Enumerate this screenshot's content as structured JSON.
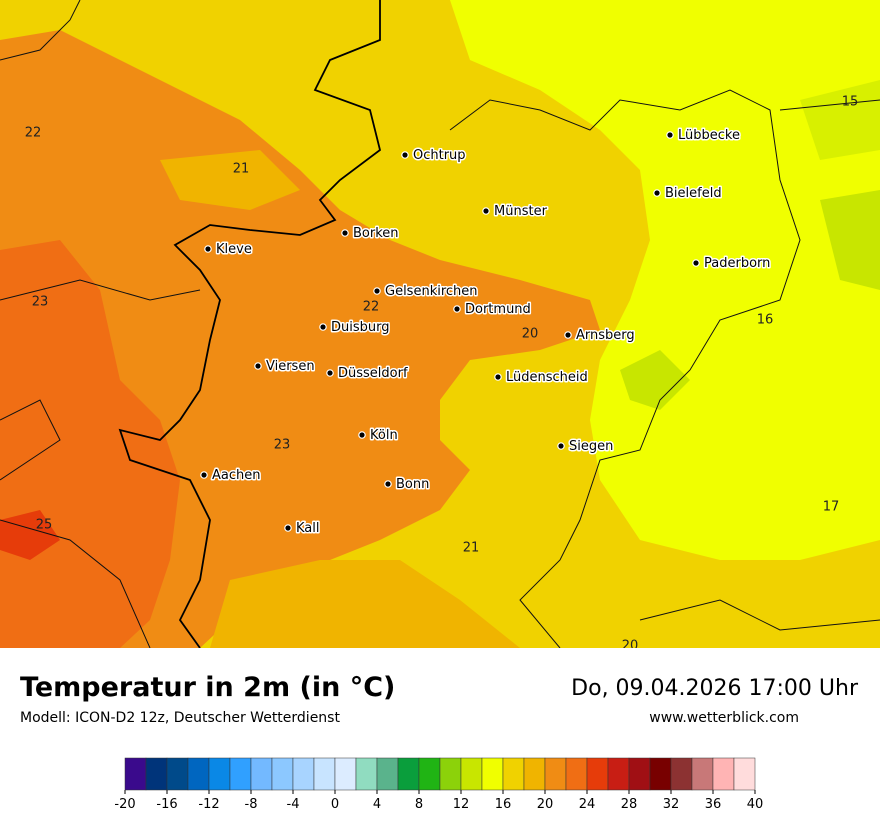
{
  "map": {
    "cities": [
      "Lübbecke",
      "Ochtrup",
      "Bielefeld",
      "Münster",
      "Borken",
      "Kleve",
      "Paderborn",
      "Gelsenkirchen",
      "Dortmund",
      "Duisburg",
      "Arnsberg",
      "Viersen",
      "Düsseldorf",
      "Lüdenscheid",
      "Köln",
      "Siegen",
      "Aachen",
      "Bonn",
      "Kall"
    ],
    "contour_labels": [
      22,
      21,
      23,
      22,
      20,
      23,
      25,
      21,
      20,
      15,
      16,
      17
    ]
  },
  "footer": {
    "title": "Temperatur in 2m (in °C)",
    "model": "Modell: ICON-D2 12z, Deutscher Wetterdienst",
    "datetime": "Do, 09.04.2026 17:00 Uhr",
    "website": "www.wetterblick.com"
  },
  "legend": {
    "ticks": [
      -20,
      -16,
      -12,
      -8,
      -4,
      0,
      4,
      8,
      12,
      16,
      20,
      24,
      28,
      32,
      36,
      40
    ],
    "colors": [
      "#3a0a8c",
      "#00347a",
      "#004a8a",
      "#0066c0",
      "#0a88e6",
      "#30a0ff",
      "#73b9ff",
      "#8cc8ff",
      "#a8d4ff",
      "#c8e4ff",
      "#dcecff",
      "#90dcc0",
      "#5ab38c",
      "#0a9e3c",
      "#20b414",
      "#8cd20a",
      "#c8e600",
      "#f0ff00",
      "#f0d200",
      "#f0b400",
      "#f08c14",
      "#f06e14",
      "#e63c0a",
      "#c81e14",
      "#a00f14",
      "#780000",
      "#8c3232",
      "#c87878",
      "#ffb4b4",
      "#ffdcdc"
    ]
  }
}
